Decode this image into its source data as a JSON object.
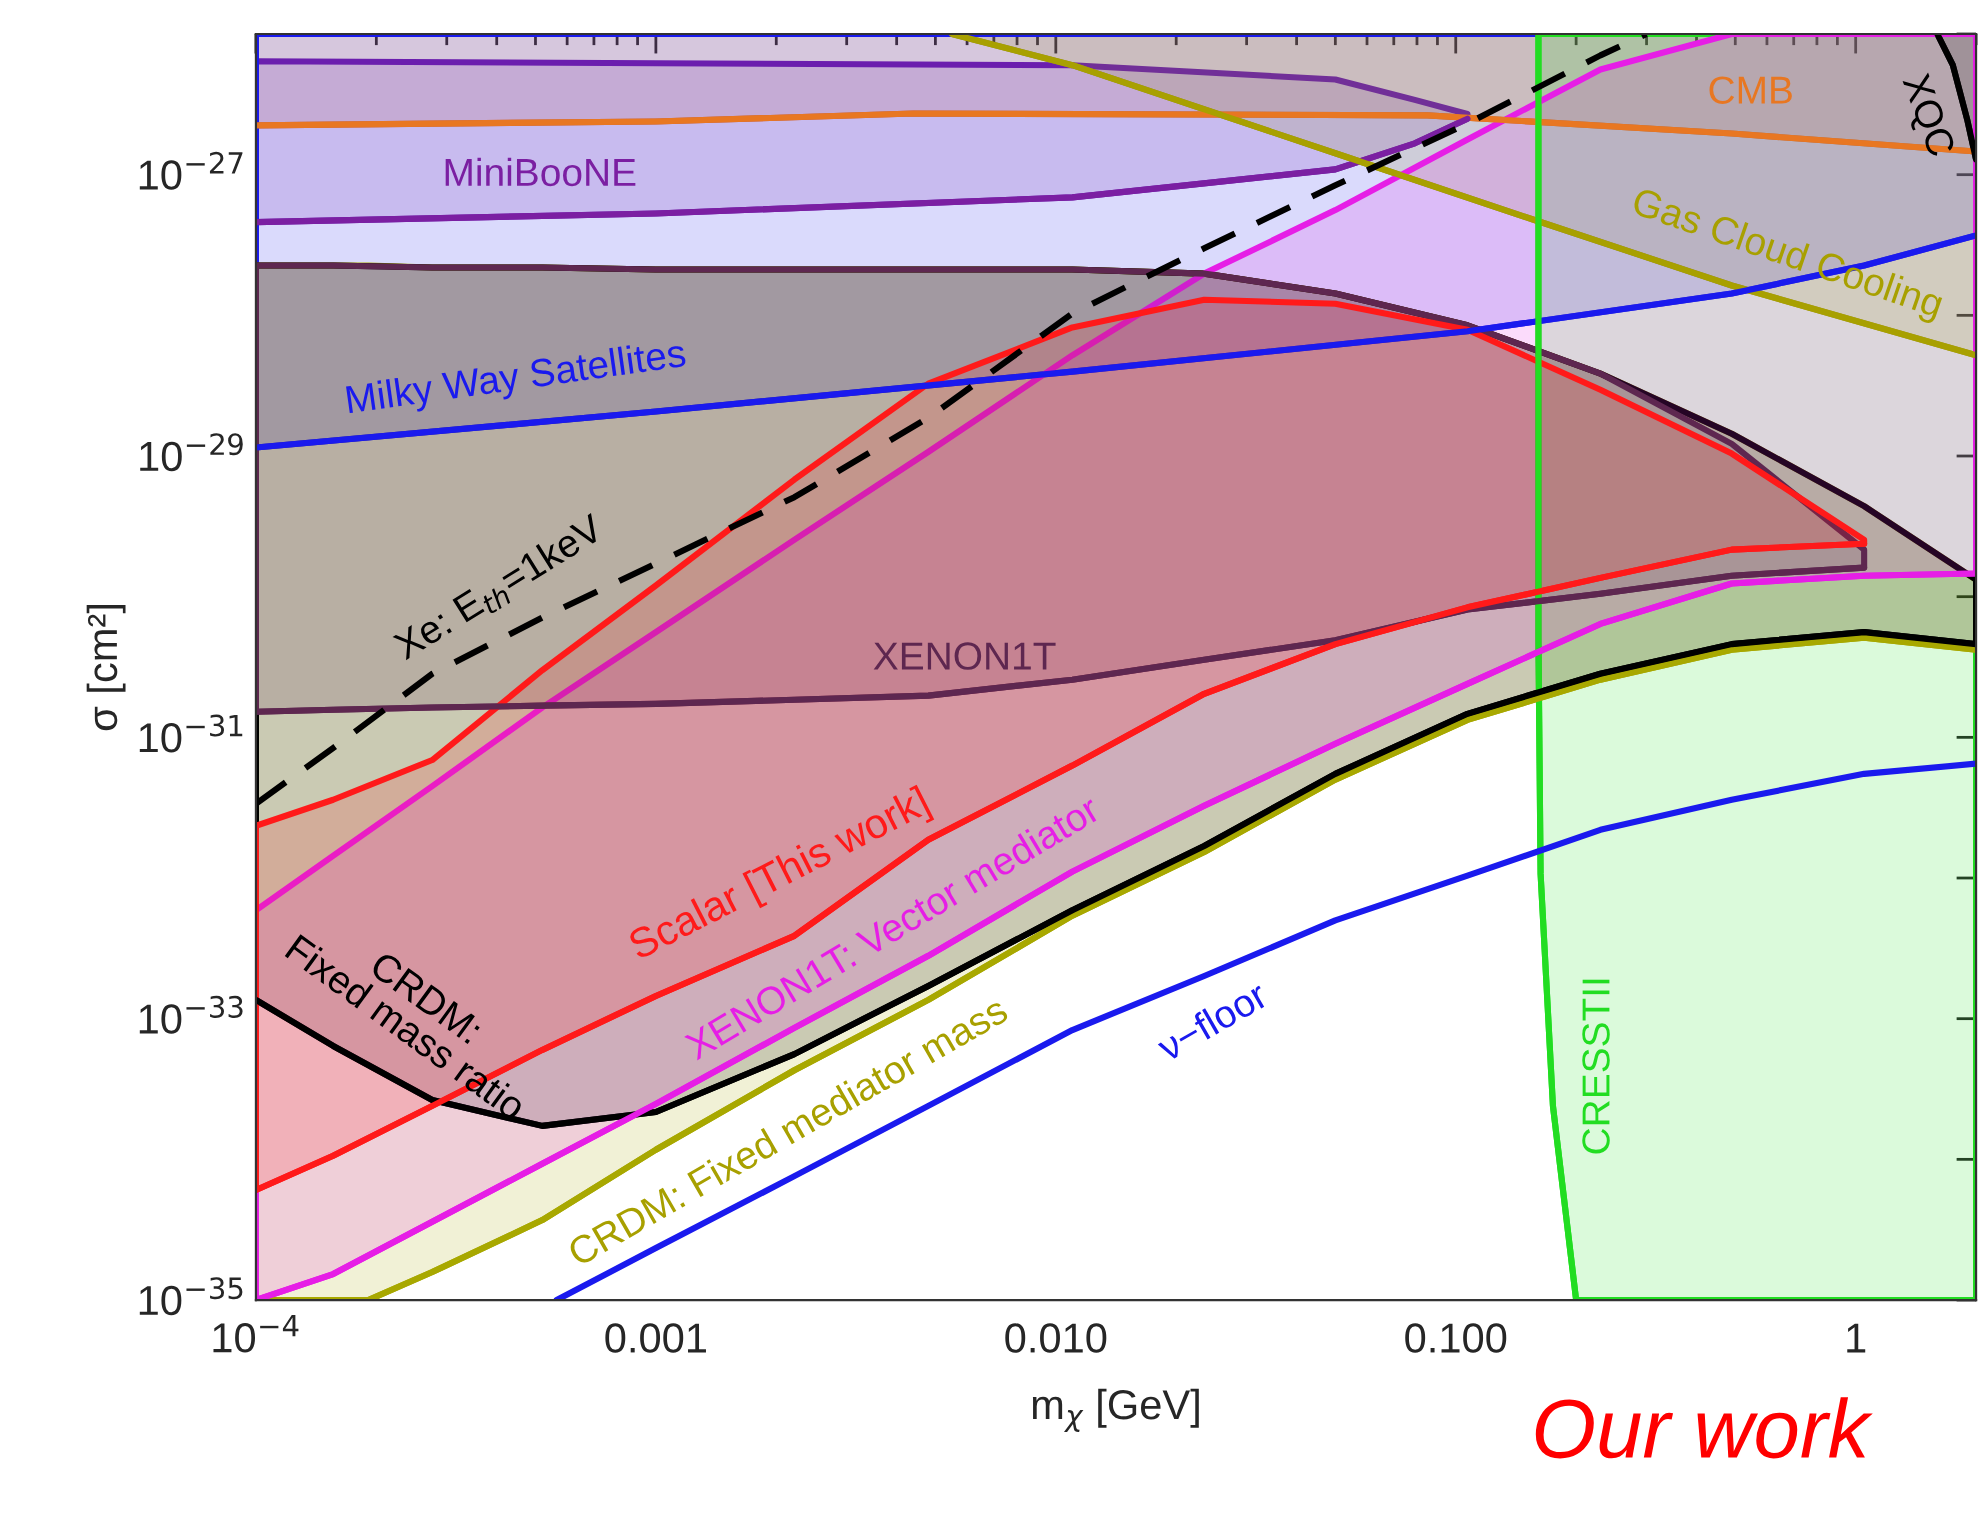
{
  "chart_data": {
    "type": "line",
    "xlabel": "m$_{χ}$ [GeV]",
    "ylabel": "σ [cm²]",
    "log": "xy",
    "grid": false,
    "xlim": [
      0.0001,
      2
    ],
    "ylim": [
      1e-35,
      1e-26
    ],
    "xticks": [
      {
        "value": 0.0001,
        "label": "10$^{−4}$"
      },
      {
        "value": 0.001,
        "label": "0.001"
      },
      {
        "value": 0.01,
        "label": "0.010"
      },
      {
        "value": 0.1,
        "label": "0.100"
      },
      {
        "value": 1,
        "label": "1"
      }
    ],
    "yticks": [
      {
        "value": 1e-35,
        "label": "10$^{−35}$"
      },
      {
        "value": 1e-34,
        "label": null
      },
      {
        "value": 1e-33,
        "label": "10$^{−33}$"
      },
      {
        "value": 1e-32,
        "label": null
      },
      {
        "value": 1e-31,
        "label": "10$^{−31}$"
      },
      {
        "value": 1e-30,
        "label": null
      },
      {
        "value": 1e-29,
        "label": "10$^{−29}$"
      },
      {
        "value": 1e-28,
        "label": null
      },
      {
        "value": 1e-27,
        "label": "10$^{−27}$"
      },
      {
        "value": 1e-26,
        "label": null
      }
    ],
    "series": [
      {
        "color": "#e87722",
        "x": [
          0.0001,
          0.001,
          0.0044,
          0.085,
          0.49,
          2
        ],
        "values": [
          2.24e-27,
          2.39e-27,
          2.72e-27,
          2.64e-27,
          1.96e-27,
          1.46e-27
        ],
        "lower": [
          2.24e-27,
          2.39e-27,
          2.72e-27,
          2.64e-27,
          1.96e-27,
          1.46e-27
        ],
        "upper": [
          1e-26,
          1e-26,
          1e-26,
          1e-26,
          1e-26,
          1e-26
        ]
      },
      {
        "color": "#7b1fa2",
        "x": [
          0.0001,
          0.001,
          0.011,
          0.05,
          0.079,
          0.107
        ],
        "values": [
          4.6e-28,
          5.3e-28,
          6.9e-28,
          1.09e-27,
          1.67e-27,
          2.5e-27
        ],
        "lower": [
          4.6e-28,
          5.3e-28,
          6.9e-28,
          1.09e-27,
          1.67e-27,
          2.5e-27
        ],
        "upper": [
          6.4e-27,
          6.2e-27,
          6e-27,
          4.75e-27,
          3.4e-27,
          2.7e-27
        ]
      },
      {
        "color": "#a8a000",
        "x": [
          0.0055,
          0.011,
          0.05,
          0.156,
          0.49,
          2
        ],
        "values": [
          1e-26,
          6e-27,
          1.42e-27,
          4.8e-28,
          1.63e-28,
          5.2e-29
        ],
        "lower": [
          1e-26,
          6e-27,
          1.42e-27,
          4.8e-28,
          1.63e-28,
          5.2e-29
        ],
        "upper": [
          1e-26,
          1e-26,
          1e-26,
          1e-26,
          1e-26,
          1e-26
        ]
      },
      {
        "color": "#1a1aee",
        "x": [
          0.0001,
          0.001,
          0.011,
          0.107,
          0.49,
          1.05,
          2
        ],
        "values": [
          1.15e-29,
          2.07e-29,
          3.98e-29,
          7.7e-29,
          1.43e-28,
          2.26e-28,
          3.7e-28
        ],
        "lower": [
          1.15e-29,
          2.07e-29,
          3.98e-29,
          7.7e-29,
          1.43e-28,
          2.26e-28,
          3.7e-28
        ],
        "upper": [
          1e-26,
          1e-26,
          1e-26,
          1e-26,
          1e-26,
          1e-26,
          1e-26
        ]
      },
      {
        "color": "#000000",
        "x": [
          1.6,
          1.75,
          1.9,
          2
        ],
        "values": [
          1e-26,
          6e-27,
          2.47e-27,
          1.28e-27
        ],
        "lower": [
          1e-26,
          6e-27,
          2.47e-27,
          1.28e-27
        ],
        "upper": [
          1e-26,
          1e-26,
          1e-26,
          1e-26
        ]
      },
      {
        "color": "#22dd22",
        "x": [
          0.161,
          0.161,
          0.163,
          0.175,
          0.2,
          2
        ],
        "values": [
          1e-26,
          4.9e-31,
          1.07e-32,
          2.4e-34,
          1e-35,
          1e-35
        ],
        "lower": [
          1e-26,
          4.9e-31,
          1.07e-32,
          2.4e-34,
          1e-35,
          1e-35
        ],
        "upper": [
          1e-26,
          1e-26,
          1e-26,
          1e-26,
          1e-26,
          1e-26
        ]
      },
      {
        "color": "#a8a800",
        "x": [
          0.0001,
          0.000191,
          0.000276,
          0.00052,
          0.001,
          0.00222,
          0.0048,
          0.011,
          0.0235,
          0.05,
          0.107,
          0.23,
          0.49,
          1.05,
          2
        ],
        "values": [
          1e-35,
          1e-35,
          1.58e-35,
          3.7e-35,
          1.17e-34,
          4.3e-34,
          1.36e-33,
          5.4e-33,
          1.53e-32,
          5e-32,
          1.33e-31,
          2.57e-31,
          4.2e-31,
          5.1e-31,
          4.2e-31
        ],
        "lower": [
          1e-35,
          1e-35,
          1.58e-35,
          3.7e-35,
          1.17e-34,
          4.3e-34,
          1.36e-33,
          5.4e-33,
          1.53e-32,
          5e-32,
          1.33e-31,
          2.57e-31,
          4.2e-31,
          5.1e-31,
          4.2e-31
        ],
        "upper": [
          2.26e-28,
          2.26e-28,
          2.19e-28,
          2.19e-28,
          2.12e-28,
          2.12e-28,
          2.12e-28,
          2.12e-28,
          1.98e-28,
          1.43e-28,
          8.5e-29,
          3.85e-29,
          1.44e-29,
          4.4e-30,
          1.32e-30
        ]
      },
      {
        "color": "#000000",
        "x": [
          0.0001,
          0.000156,
          0.000276,
          0.00052,
          0.001,
          0.00222,
          0.0048,
          0.011,
          0.0235,
          0.05,
          0.107,
          0.23,
          0.49,
          1.05,
          2
        ],
        "values": [
          1.36e-33,
          6.4e-34,
          2.64e-34,
          1.73e-34,
          2.17e-34,
          5.6e-34,
          1.71e-33,
          5.9e-33,
          1.69e-32,
          5.5e-32,
          1.47e-31,
          2.83e-31,
          4.6e-31,
          5.6e-31,
          4.6e-31
        ],
        "lower": [
          1.36e-33,
          6.4e-34,
          2.64e-34,
          1.73e-34,
          2.17e-34,
          5.6e-34,
          1.71e-33,
          5.9e-33,
          1.69e-32,
          5.5e-32,
          1.47e-31,
          2.83e-31,
          4.6e-31,
          5.6e-31,
          4.6e-31
        ],
        "upper": [
          2.26e-28,
          2.26e-28,
          2.19e-28,
          2.19e-28,
          2.12e-28,
          2.12e-28,
          2.12e-28,
          2.12e-28,
          1.98e-28,
          1.43e-28,
          8.5e-29,
          3.85e-29,
          1.44e-29,
          4.4e-30,
          1.32e-30
        ]
      },
      {
        "color": "#e61ee6",
        "x": [
          0.0001,
          0.000156,
          0.000276,
          0.00052,
          0.001,
          0.00222,
          0.0048,
          0.011,
          0.0235,
          0.05,
          0.107,
          0.23,
          0.49,
          1.05,
          2
        ],
        "values": [
          1e-35,
          1.53e-35,
          3.6e-35,
          9.3e-35,
          2.48e-34,
          8.6e-34,
          2.8e-33,
          1.11e-32,
          3.26e-32,
          9e-32,
          2.4e-31,
          6.4e-31,
          1.24e-30,
          1.41e-30,
          1.46e-30
        ],
        "lower": [
          1e-35,
          1.53e-35,
          3.6e-35,
          9.3e-35,
          2.48e-34,
          8.6e-34,
          2.8e-33,
          1.11e-32,
          3.26e-32,
          9e-32,
          2.4e-31,
          6.4e-31,
          1.24e-30,
          1.41e-30,
          1.46e-30
        ],
        "upper": [
          5.9e-33,
          1.44e-32,
          4.5e-32,
          1.63e-31,
          5.6e-31,
          2.54e-30,
          1.07e-29,
          5.2e-29,
          1.98e-28,
          5.6e-28,
          1.78e-27,
          5.6e-27,
          1e-26,
          1e-26,
          1e-26
        ]
      },
      {
        "color": "#5e2750",
        "x": [
          0.0001,
          0.000156,
          0.000276,
          0.00052,
          0.001,
          0.00222,
          0.0048,
          0.011,
          0.0235,
          0.05,
          0.107,
          0.23,
          0.49,
          1.05
        ],
        "values": [
          1.52e-31,
          1.57e-31,
          1.63e-31,
          1.68e-31,
          1.73e-31,
          1.85e-31,
          1.98e-31,
          2.57e-31,
          3.56e-31,
          4.9e-31,
          8.1e-31,
          1.05e-30,
          1.41e-30,
          1.61e-30
        ],
        "lower": [
          1.52e-31,
          1.57e-31,
          1.63e-31,
          1.68e-31,
          1.73e-31,
          1.85e-31,
          1.98e-31,
          2.57e-31,
          3.56e-31,
          4.9e-31,
          8.1e-31,
          1.05e-30,
          1.41e-30,
          1.61e-30
        ],
        "upper": [
          2.26e-28,
          2.26e-28,
          2.19e-28,
          2.19e-28,
          2.12e-28,
          2.12e-28,
          2.12e-28,
          2.12e-28,
          1.98e-28,
          1.43e-28,
          8.5e-29,
          3.85e-29,
          1.22e-29,
          2.16e-30
        ]
      },
      {
        "color": "#ff1a1a",
        "x": [
          0.0001,
          0.000156,
          0.000276,
          0.00052,
          0.001,
          0.00222,
          0.0048,
          0.011,
          0.0235,
          0.05,
          0.107,
          0.23,
          0.49,
          1.05
        ],
        "values": [
          6.05e-35,
          1.06e-34,
          2.4e-34,
          6e-34,
          1.45e-33,
          3.88e-33,
          1.87e-32,
          6.3e-32,
          2.04e-31,
          4.6e-31,
          8.4e-31,
          1.36e-30,
          2.16e-30,
          2.38e-30
        ],
        "lower": [
          6.05e-35,
          1.06e-34,
          2.4e-34,
          6e-34,
          1.45e-33,
          3.88e-33,
          1.87e-32,
          6.3e-32,
          2.04e-31,
          4.6e-31,
          8.4e-31,
          1.36e-30,
          2.16e-30,
          2.38e-30
        ],
        "upper": [
          2.35e-32,
          3.6e-32,
          6.9e-32,
          3e-31,
          1.2e-30,
          6.8e-30,
          3.27e-29,
          8.2e-29,
          1.29e-28,
          1.21e-28,
          7.9e-29,
          2.96e-29,
          1.04e-29,
          2.54e-30
        ]
      },
      {
        "color": "#000000",
        "line_style": "dashed",
        "x": [
          0.0001,
          0.000156,
          0.000276,
          0.00052,
          0.001,
          0.00222,
          0.0048,
          0.011,
          0.0235,
          0.05,
          0.107,
          0.23,
          0.3
        ],
        "values": [
          3.37e-32,
          8.4e-32,
          2.83e-31,
          7.1e-31,
          1.72e-30,
          5.1e-30,
          1.87e-29,
          1.03e-28,
          3e-28,
          8.4e-28,
          2.31e-27,
          7.05e-27,
          1e-26
        ]
      },
      {
        "color": "#1a1aee",
        "x": [
          0.000565,
          0.001,
          0.00222,
          0.0048,
          0.011,
          0.0235,
          0.05,
          0.107,
          0.23,
          0.49,
          1.05,
          2
        ],
        "values": [
          1e-35,
          2.34e-35,
          7.6e-35,
          2.4e-34,
          8.3e-34,
          2.01e-33,
          5e-33,
          1.04e-32,
          2.2e-32,
          3.6e-32,
          5.5e-32,
          6.5e-32
        ]
      }
    ],
    "annotations": [
      "MiniBooNE",
      "CMB",
      "XQC",
      "Gas Cloud Cooling",
      "Milky Way Satellites",
      "Xe: E$_{th}$=1keV",
      "XENON1T",
      "Scalar [This work]",
      "XENON1T: Vector mediator",
      "CRDM: Fixed mediator mass",
      "CRDM:\nFixed mass ratio",
      "ν−floor",
      "CRESSTII",
      "Our work"
    ]
  }
}
